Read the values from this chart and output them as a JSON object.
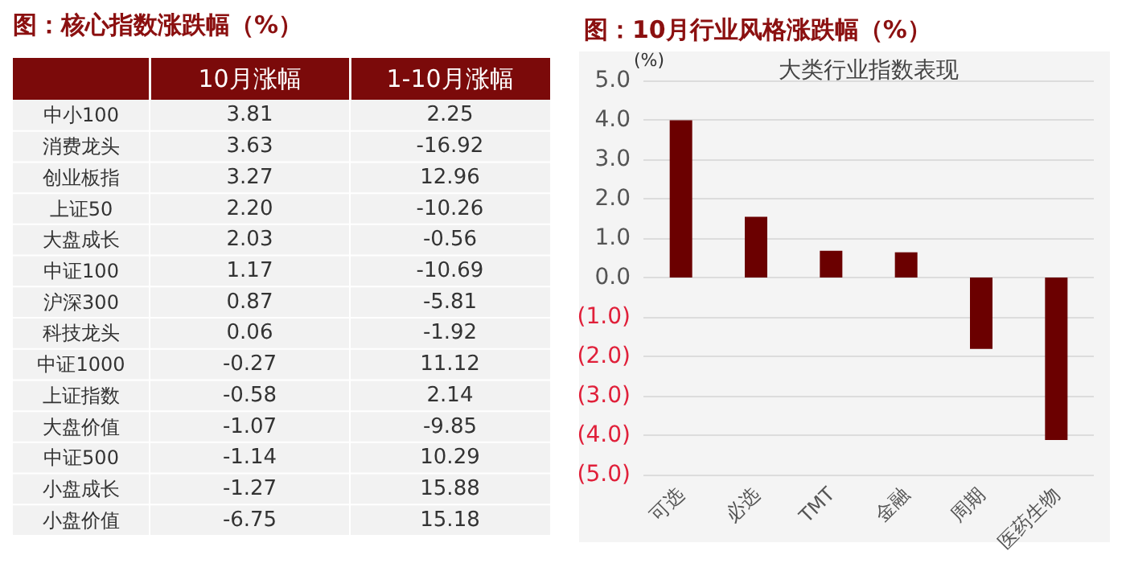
{
  "chart_data": [
    {
      "type": "other",
      "title": "图：核心指数涨跌幅（%）",
      "categories": [
        "中小100",
        "消费龙头",
        "创业板指",
        "上证50",
        "大盘成长",
        "中证100",
        "沪深300",
        "科技龙头",
        "中证1000",
        "上证指数",
        "大盘价值",
        "中证500",
        "小盘成长",
        "小盘价值"
      ],
      "data_labels": true,
      "series": [
        {
          "name": "10月涨幅",
          "values": [
            3.81,
            3.63,
            3.27,
            2.2,
            2.03,
            1.17,
            0.87,
            0.06,
            -0.27,
            -0.58,
            -1.07,
            -1.14,
            -1.27,
            -6.75
          ],
          "value_labels": [
            "3.81",
            "3.63",
            "3.27",
            "2.20",
            "2.03",
            "1.17",
            "0.87",
            "0.06",
            "-0.27",
            "-0.58",
            "-1.07",
            "-1.14",
            "-1.27",
            "-6.75"
          ]
        },
        {
          "name": "1-10月涨幅",
          "values": [
            2.25,
            -16.92,
            12.96,
            -10.26,
            -0.56,
            -10.69,
            -5.81,
            -1.92,
            11.12,
            2.14,
            -9.85,
            10.29,
            15.88,
            15.18
          ]
        }
      ]
    },
    {
      "type": "bar",
      "title": "图：10月行业风格涨跌幅（%）",
      "subtitle": "大类行业指数表现",
      "ylabel": "(%)",
      "categories": [
        "可选",
        "必选",
        "TMT",
        "金融",
        "周期",
        "医药生物"
      ],
      "values": [
        3.99,
        1.54,
        0.68,
        0.64,
        -1.81,
        -4.12
      ],
      "color": "#6b0000",
      "ylim": [
        -5,
        5
      ],
      "yticks": [
        {
          "value": 5,
          "label": "5.0"
        },
        {
          "value": 4,
          "label": "4.0"
        },
        {
          "value": 3,
          "label": "3.0"
        },
        {
          "value": 2,
          "label": "2.0"
        },
        {
          "value": 1,
          "label": "1.0"
        },
        {
          "value": 0,
          "label": "0.0"
        },
        {
          "value": -1,
          "label": "(1.0)"
        },
        {
          "value": -2,
          "label": "(2.0)"
        },
        {
          "value": -3,
          "label": "(3.0)"
        },
        {
          "value": -4,
          "label": "(4.0)"
        },
        {
          "value": -5,
          "label": "(5.0)"
        }
      ],
      "grid": "y"
    }
  ]
}
